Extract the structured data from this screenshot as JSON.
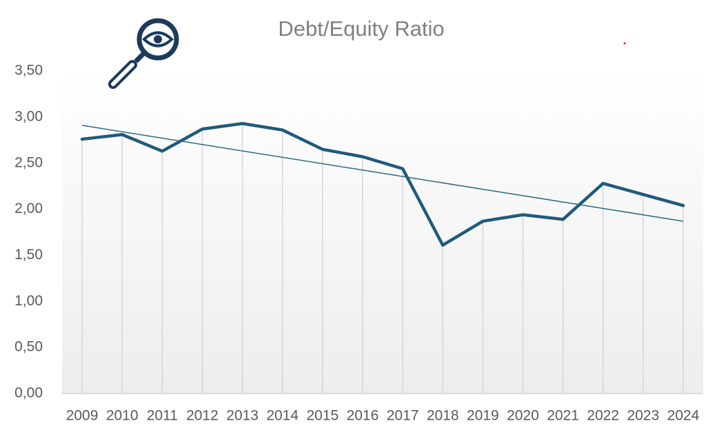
{
  "chart_data": {
    "type": "line",
    "title": "Debt/Equity Ratio",
    "categories": [
      "2009",
      "2010",
      "2011",
      "2012",
      "2013",
      "2014",
      "2015",
      "2016",
      "2017",
      "2018",
      "2019",
      "2020",
      "2021",
      "2022",
      "2023",
      "2024"
    ],
    "series": [
      {
        "color": "#1f5a7a",
        "values": [
          2.76,
          2.81,
          2.63,
          2.87,
          2.93,
          2.86,
          2.65,
          2.57,
          2.44,
          1.61,
          1.87,
          1.94,
          1.89,
          2.28,
          2.16,
          2.04
        ]
      }
    ],
    "trendline": {
      "color": "#2a6a84",
      "values": [
        2.91,
        1.87
      ]
    },
    "ylim": [
      0,
      3.5
    ],
    "yticks": [
      {
        "value": 0,
        "label": "0,00"
      },
      {
        "value": 0.5,
        "label": "0,50"
      },
      {
        "value": 1,
        "label": "1,00"
      },
      {
        "value": 1.5,
        "label": "1,50"
      },
      {
        "value": 2,
        "label": "2,00"
      },
      {
        "value": 2.5,
        "label": "2,50"
      },
      {
        "value": 3,
        "label": "3,00"
      },
      {
        "value": 3.5,
        "label": "3,50"
      }
    ],
    "drop_lines": true
  }
}
